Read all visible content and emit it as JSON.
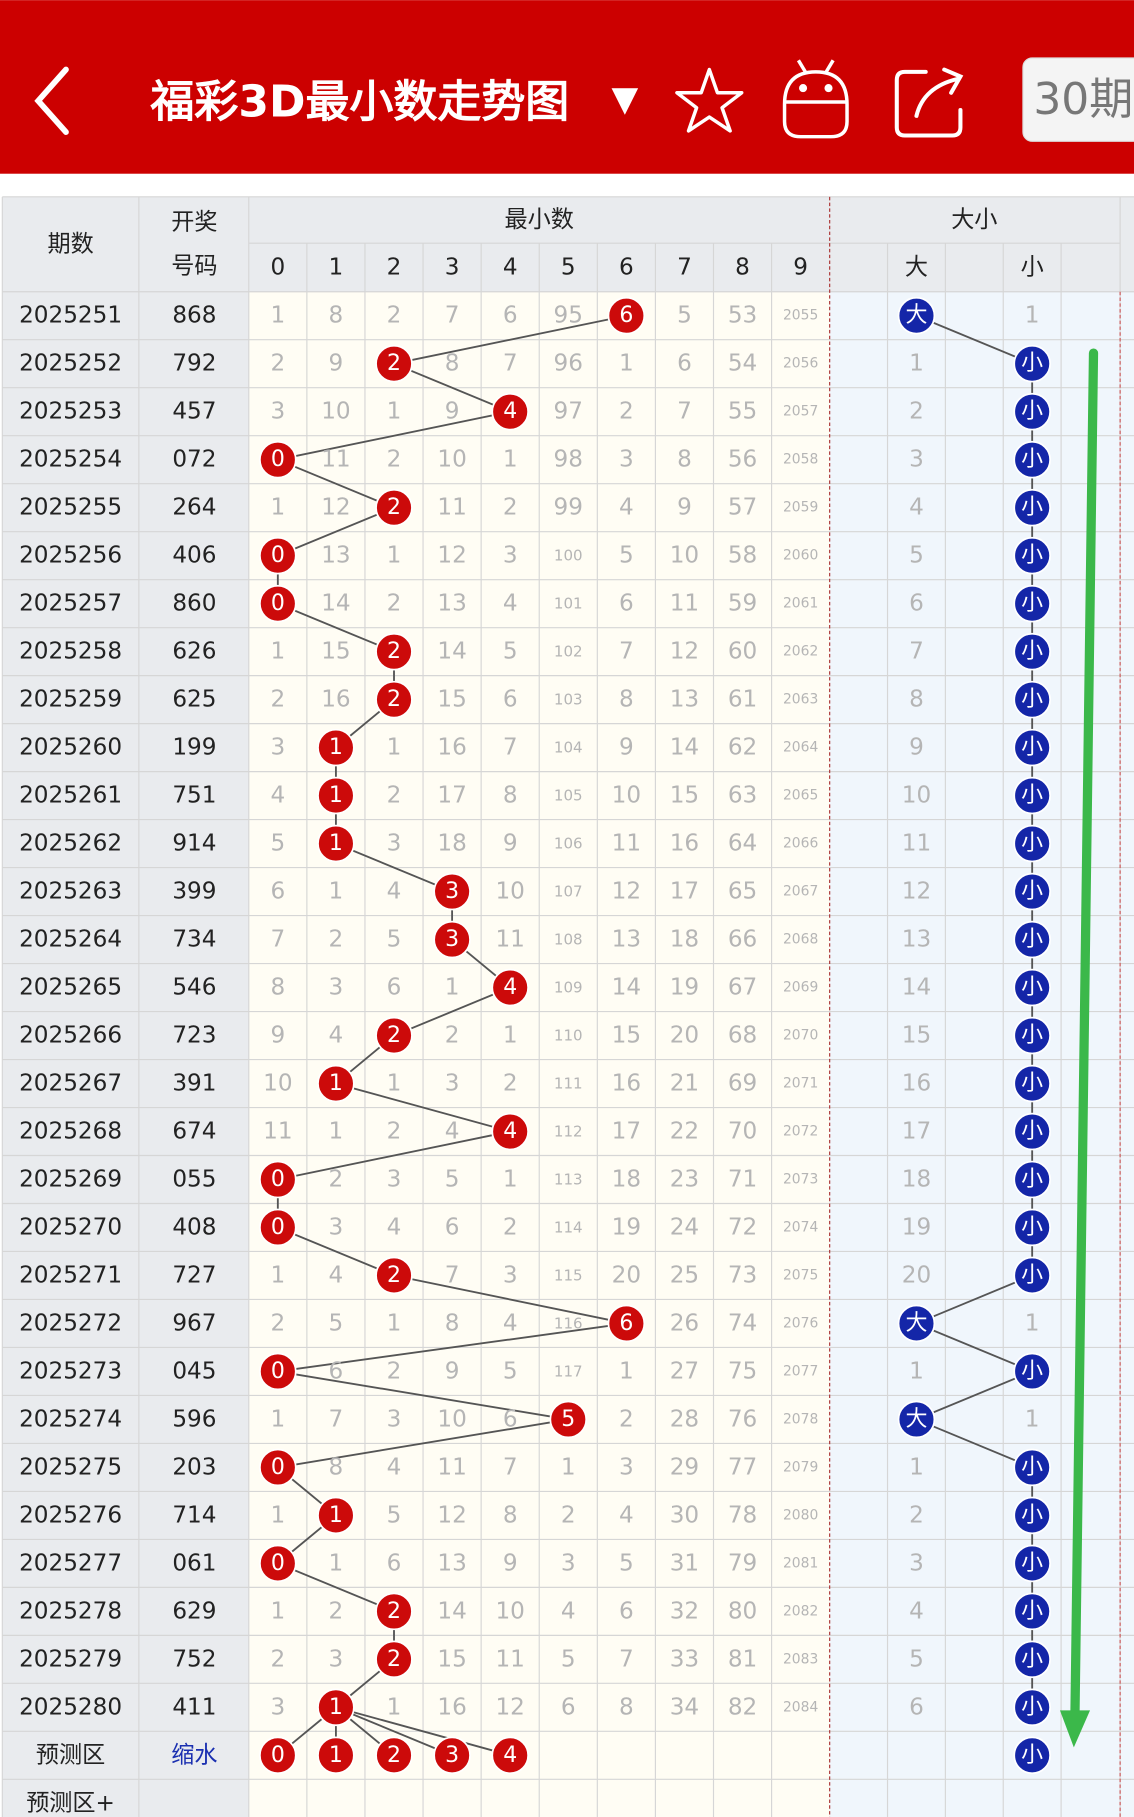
{
  "header": {
    "title": "福彩3D最小数走势图",
    "dropdown": "▼",
    "period_button": "30期"
  },
  "table": {
    "col_period": "期数",
    "col_draw": [
      "开奖",
      "号码"
    ],
    "group_min": "最小数",
    "digits": [
      0,
      1,
      2,
      3,
      4,
      5,
      6,
      7,
      8,
      9
    ],
    "group_size": "大小",
    "size_cols": [
      "大",
      "小"
    ],
    "rows": [
      {
        "period": "2025251",
        "draw": "868",
        "cells": [
          1,
          8,
          2,
          7,
          6,
          95,
          6,
          5,
          53,
          2055
        ],
        "hit": 6,
        "size": [
          "大",
          1
        ],
        "size_hit": 0
      },
      {
        "period": "2025252",
        "draw": "792",
        "cells": [
          2,
          9,
          2,
          8,
          7,
          96,
          1,
          6,
          54,
          2056
        ],
        "hit": 2,
        "size": [
          1,
          "小"
        ],
        "size_hit": 1
      },
      {
        "period": "2025253",
        "draw": "457",
        "cells": [
          3,
          10,
          1,
          9,
          4,
          97,
          2,
          7,
          55,
          2057
        ],
        "hit": 4,
        "size": [
          2,
          "小"
        ],
        "size_hit": 1
      },
      {
        "period": "2025254",
        "draw": "072",
        "cells": [
          0,
          11,
          2,
          10,
          1,
          98,
          3,
          8,
          56,
          2058
        ],
        "hit": 0,
        "size": [
          3,
          "小"
        ],
        "size_hit": 1
      },
      {
        "period": "2025255",
        "draw": "264",
        "cells": [
          1,
          12,
          2,
          11,
          2,
          99,
          4,
          9,
          57,
          2059
        ],
        "hit": 2,
        "size": [
          4,
          "小"
        ],
        "size_hit": 1
      },
      {
        "period": "2025256",
        "draw": "406",
        "cells": [
          0,
          13,
          1,
          12,
          3,
          100,
          5,
          10,
          58,
          2060
        ],
        "hit": 0,
        "size": [
          5,
          "小"
        ],
        "size_hit": 1
      },
      {
        "period": "2025257",
        "draw": "860",
        "cells": [
          0,
          14,
          2,
          13,
          4,
          101,
          6,
          11,
          59,
          2061
        ],
        "hit": 0,
        "size": [
          6,
          "小"
        ],
        "size_hit": 1
      },
      {
        "period": "2025258",
        "draw": "626",
        "cells": [
          1,
          15,
          2,
          14,
          5,
          102,
          7,
          12,
          60,
          2062
        ],
        "hit": 2,
        "size": [
          7,
          "小"
        ],
        "size_hit": 1
      },
      {
        "period": "2025259",
        "draw": "625",
        "cells": [
          2,
          16,
          2,
          15,
          6,
          103,
          8,
          13,
          61,
          2063
        ],
        "hit": 2,
        "size": [
          8,
          "小"
        ],
        "size_hit": 1
      },
      {
        "period": "2025260",
        "draw": "199",
        "cells": [
          3,
          1,
          1,
          16,
          7,
          104,
          9,
          14,
          62,
          2064
        ],
        "hit": 1,
        "size": [
          9,
          "小"
        ],
        "size_hit": 1
      },
      {
        "period": "2025261",
        "draw": "751",
        "cells": [
          4,
          1,
          2,
          17,
          8,
          105,
          10,
          15,
          63,
          2065
        ],
        "hit": 1,
        "size": [
          10,
          "小"
        ],
        "size_hit": 1
      },
      {
        "period": "2025262",
        "draw": "914",
        "cells": [
          5,
          1,
          3,
          18,
          9,
          106,
          11,
          16,
          64,
          2066
        ],
        "hit": 1,
        "size": [
          11,
          "小"
        ],
        "size_hit": 1
      },
      {
        "period": "2025263",
        "draw": "399",
        "cells": [
          6,
          1,
          4,
          3,
          10,
          107,
          12,
          17,
          65,
          2067
        ],
        "hit": 3,
        "size": [
          12,
          "小"
        ],
        "size_hit": 1
      },
      {
        "period": "2025264",
        "draw": "734",
        "cells": [
          7,
          2,
          5,
          3,
          11,
          108,
          13,
          18,
          66,
          2068
        ],
        "hit": 3,
        "size": [
          13,
          "小"
        ],
        "size_hit": 1
      },
      {
        "period": "2025265",
        "draw": "546",
        "cells": [
          8,
          3,
          6,
          1,
          4,
          109,
          14,
          19,
          67,
          2069
        ],
        "hit": 4,
        "size": [
          14,
          "小"
        ],
        "size_hit": 1
      },
      {
        "period": "2025266",
        "draw": "723",
        "cells": [
          9,
          4,
          2,
          2,
          1,
          110,
          15,
          20,
          68,
          2070
        ],
        "hit": 2,
        "size": [
          15,
          "小"
        ],
        "size_hit": 1
      },
      {
        "period": "2025267",
        "draw": "391",
        "cells": [
          10,
          1,
          1,
          3,
          2,
          111,
          16,
          21,
          69,
          2071
        ],
        "hit": 1,
        "size": [
          16,
          "小"
        ],
        "size_hit": 1
      },
      {
        "period": "2025268",
        "draw": "674",
        "cells": [
          11,
          1,
          2,
          4,
          4,
          112,
          17,
          22,
          70,
          2072
        ],
        "hit": 4,
        "size": [
          17,
          "小"
        ],
        "size_hit": 1
      },
      {
        "period": "2025269",
        "draw": "055",
        "cells": [
          0,
          2,
          3,
          5,
          1,
          113,
          18,
          23,
          71,
          2073
        ],
        "hit": 0,
        "size": [
          18,
          "小"
        ],
        "size_hit": 1
      },
      {
        "period": "2025270",
        "draw": "408",
        "cells": [
          0,
          3,
          4,
          6,
          2,
          114,
          19,
          24,
          72,
          2074
        ],
        "hit": 0,
        "size": [
          19,
          "小"
        ],
        "size_hit": 1
      },
      {
        "period": "2025271",
        "draw": "727",
        "cells": [
          1,
          4,
          2,
          7,
          3,
          115,
          20,
          25,
          73,
          2075
        ],
        "hit": 2,
        "size": [
          20,
          "小"
        ],
        "size_hit": 1
      },
      {
        "period": "2025272",
        "draw": "967",
        "cells": [
          2,
          5,
          1,
          8,
          4,
          116,
          6,
          26,
          74,
          2076
        ],
        "hit": 6,
        "size": [
          "大",
          1
        ],
        "size_hit": 0
      },
      {
        "period": "2025273",
        "draw": "045",
        "cells": [
          0,
          6,
          2,
          9,
          5,
          117,
          1,
          27,
          75,
          2077
        ],
        "hit": 0,
        "size": [
          1,
          "小"
        ],
        "size_hit": 1
      },
      {
        "period": "2025274",
        "draw": "596",
        "cells": [
          1,
          7,
          3,
          10,
          6,
          5,
          2,
          28,
          76,
          2078
        ],
        "hit": 5,
        "size": [
          "大",
          1
        ],
        "size_hit": 0
      },
      {
        "period": "2025275",
        "draw": "203",
        "cells": [
          0,
          8,
          4,
          11,
          7,
          1,
          3,
          29,
          77,
          2079
        ],
        "hit": 0,
        "size": [
          1,
          "小"
        ],
        "size_hit": 1
      },
      {
        "period": "2025276",
        "draw": "714",
        "cells": [
          1,
          1,
          5,
          12,
          8,
          2,
          4,
          30,
          78,
          2080
        ],
        "hit": 1,
        "size": [
          2,
          "小"
        ],
        "size_hit": 1
      },
      {
        "period": "2025277",
        "draw": "061",
        "cells": [
          0,
          1,
          6,
          13,
          9,
          3,
          5,
          31,
          79,
          2081
        ],
        "hit": 0,
        "size": [
          3,
          "小"
        ],
        "size_hit": 1
      },
      {
        "period": "2025278",
        "draw": "629",
        "cells": [
          1,
          2,
          2,
          14,
          10,
          4,
          6,
          32,
          80,
          2082
        ],
        "hit": 2,
        "size": [
          4,
          "小"
        ],
        "size_hit": 1
      },
      {
        "period": "2025279",
        "draw": "752",
        "cells": [
          2,
          3,
          2,
          15,
          11,
          5,
          7,
          33,
          81,
          2083
        ],
        "hit": 2,
        "size": [
          5,
          "小"
        ],
        "size_hit": 1
      },
      {
        "period": "2025280",
        "draw": "411",
        "cells": [
          3,
          1,
          1,
          16,
          12,
          6,
          8,
          34,
          82,
          2084
        ],
        "hit": 1,
        "size": [
          6,
          "小"
        ],
        "size_hit": 1
      }
    ],
    "forecast": {
      "label": "预测区",
      "method": "缩水",
      "picks": [
        0,
        1,
        2,
        3,
        4
      ],
      "size": "小"
    },
    "forecast_plus": "预测区+"
  }
}
